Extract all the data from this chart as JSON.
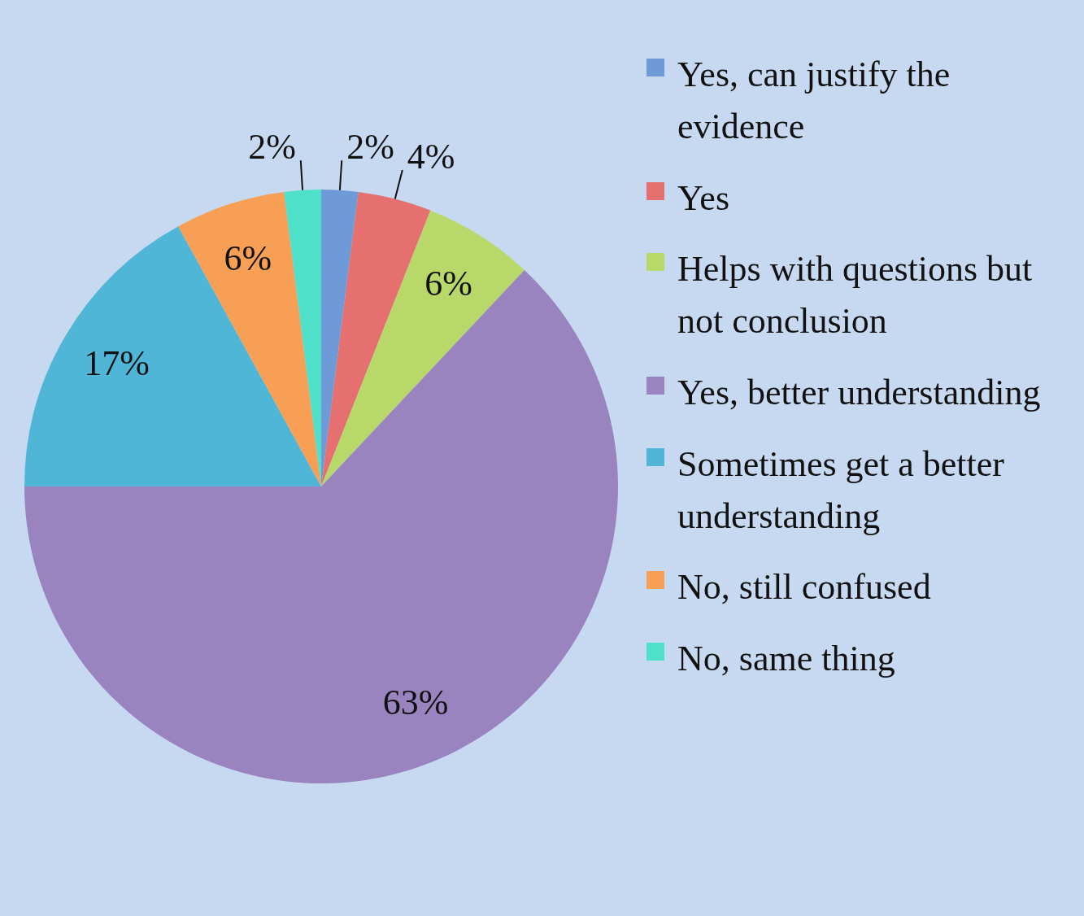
{
  "chart_data": {
    "type": "pie",
    "categories": [
      "Yes, can justify the evidence",
      "Yes",
      "Helps with questions but not conclusion",
      "Yes, better understanding",
      "Sometimes get a better understanding",
      "No, still confused",
      "No, same thing"
    ],
    "values": [
      2,
      4,
      6,
      63,
      17,
      6,
      2
    ],
    "value_labels": [
      "2%",
      "4%",
      "6%",
      "63%",
      "17%",
      "6%",
      "2%"
    ],
    "colors": [
      "#6f9ad8",
      "#e5706f",
      "#b8d96a",
      "#9a84c0",
      "#4fb6d8",
      "#f7a055",
      "#4ee0c8"
    ],
    "legend": "right"
  }
}
